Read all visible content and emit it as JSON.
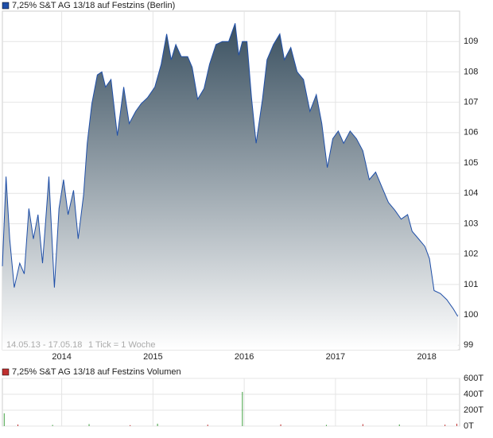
{
  "chart_data": [
    {
      "type": "area",
      "title": "7,25% S&T AG 13/18 auf Festzins (Berlin)",
      "annotations": [
        "14.05.13 - 17.05.18",
        "1 Tick = 1 Woche"
      ],
      "color": "#1f4fa8",
      "x": [
        2013.35,
        2013.39,
        2013.43,
        2013.48,
        2013.54,
        2013.59,
        2013.64,
        2013.69,
        2013.74,
        2013.79,
        2013.86,
        2013.92,
        2013.97,
        2014.02,
        2014.07,
        2014.13,
        2014.18,
        2014.24,
        2014.28,
        2014.33,
        2014.39,
        2014.44,
        2014.48,
        2014.54,
        2014.61,
        2014.68,
        2014.74,
        2014.81,
        2014.87,
        2014.94,
        2015.02,
        2015.09,
        2015.15,
        2015.2,
        2015.25,
        2015.31,
        2015.38,
        2015.43,
        2015.49,
        2015.56,
        2015.62,
        2015.69,
        2015.76,
        2015.83,
        2015.9,
        2015.94,
        2015.98,
        2016.03,
        2016.08,
        2016.13,
        2016.2,
        2016.25,
        2016.32,
        2016.39,
        2016.44,
        2016.51,
        2016.58,
        2016.65,
        2016.72,
        2016.79,
        2016.85,
        2016.91,
        2016.97,
        2017.03,
        2017.09,
        2017.16,
        2017.23,
        2017.3,
        2017.37,
        2017.44,
        2017.51,
        2017.58,
        2017.65,
        2017.72,
        2017.79,
        2017.84,
        2017.91,
        2017.98,
        2018.03,
        2018.08,
        2018.15,
        2018.22,
        2018.29,
        2018.34
      ],
      "values": [
        101.6,
        104.55,
        102.5,
        100.9,
        101.7,
        101.35,
        103.5,
        102.5,
        103.3,
        101.7,
        104.55,
        100.9,
        103.5,
        104.45,
        103.3,
        104.1,
        102.5,
        103.95,
        105.65,
        106.95,
        107.9,
        108,
        107.5,
        107.75,
        105.9,
        107.5,
        106.3,
        106.7,
        106.95,
        107.15,
        107.5,
        108.25,
        109.25,
        108.4,
        108.9,
        108.5,
        108.5,
        108.15,
        107.1,
        107.45,
        108.25,
        108.9,
        109,
        109,
        109.6,
        108.55,
        109,
        109,
        107.15,
        105.65,
        107.1,
        108.4,
        108.9,
        109.25,
        108.4,
        108.8,
        108,
        107.75,
        106.7,
        107.25,
        106.3,
        104.85,
        105.8,
        106.05,
        105.65,
        106.05,
        105.8,
        105.4,
        104.45,
        104.7,
        104.2,
        103.7,
        103.45,
        103.15,
        103.3,
        102.75,
        102.5,
        102.25,
        101.85,
        100.8,
        100.7,
        100.5,
        100.2,
        99.95
      ],
      "xlim": [
        2013.35,
        2018.36
      ],
      "xticks": [
        2014,
        2015,
        2016,
        2017,
        2018
      ],
      "ylim": [
        98.85,
        110
      ],
      "yticks": [
        99,
        100,
        101,
        102,
        103,
        104,
        105,
        106,
        107,
        108,
        109
      ],
      "grid": true
    },
    {
      "type": "bar",
      "title": "7,25% S&T AG 13/18 auf Festzins Volumen",
      "color": "#c03030",
      "x": [
        2013.37,
        2013.52,
        2013.9,
        2014.3,
        2014.75,
        2015.05,
        2015.6,
        2015.98,
        2016.4,
        2016.9,
        2017.3,
        2017.7,
        2018.2,
        2018.33
      ],
      "values": [
        160000,
        20000,
        15000,
        25000,
        12000,
        30000,
        18000,
        430000,
        22000,
        15000,
        25000,
        20000,
        18000,
        30000
      ],
      "colors": [
        "#40a040",
        "#c03030",
        "#40a040",
        "#40a040",
        "#c03030",
        "#40a040",
        "#c03030",
        "#40a040",
        "#c03030",
        "#40a040",
        "#c03030",
        "#40a040",
        "#c03030",
        "#c03030"
      ],
      "xlim": [
        2013.35,
        2018.36
      ],
      "ylim": [
        0,
        600000
      ],
      "yticks": [
        {
          "value": 0,
          "label": "0T"
        },
        {
          "value": 200000,
          "label": "200T"
        },
        {
          "value": 400000,
          "label": "400T"
        },
        {
          "value": 600000,
          "label": "600T"
        }
      ],
      "grid": true
    }
  ]
}
